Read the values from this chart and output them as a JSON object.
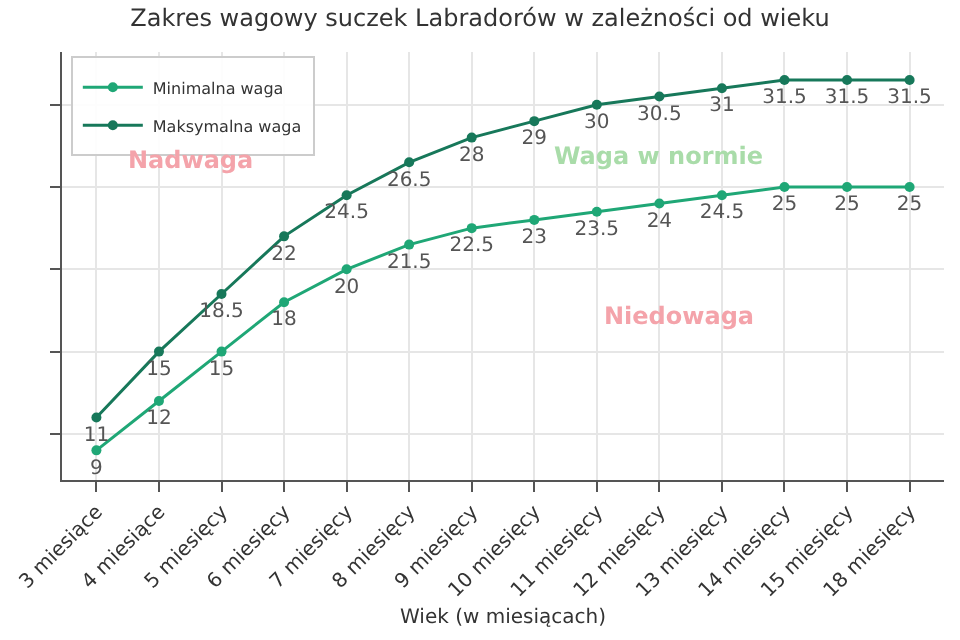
{
  "chart_data": {
    "type": "line",
    "title": "Zakres wagowy suczek Labradorów w zależności od wieku",
    "xlabel": "Wiek (w miesiącach)",
    "categories": [
      "3 miesiące",
      "4 miesiące",
      "5 miesięcy",
      "6 miesięcy",
      "7 miesięcy",
      "8 miesięcy",
      "9 miesięcy",
      "10 miesięcy",
      "11 miesięcy",
      "12 miesięcy",
      "13 miesięcy",
      "14 miesięcy",
      "15 miesięcy",
      "18 miesięcy"
    ],
    "series": [
      {
        "name": "Minimalna waga",
        "color": "#1fa776",
        "values": [
          9,
          12,
          15,
          18,
          20,
          21.5,
          22.5,
          23,
          23.5,
          24,
          24.5,
          25,
          25,
          25
        ]
      },
      {
        "name": "Maksymalna waga",
        "color": "#17785a",
        "values": [
          11,
          15,
          18.5,
          22,
          24.5,
          26.5,
          28,
          29,
          30,
          30.5,
          31,
          31.5,
          31.5,
          31.5
        ]
      }
    ],
    "annotations": [
      "Nadwaga",
      "Waga w normie",
      "Niedowaga"
    ],
    "ylim": [
      7.2,
      33.2
    ],
    "yticks": [
      {
        "value": 10,
        "label": null
      },
      {
        "value": 15,
        "label": null
      },
      {
        "value": 20,
        "label": null
      },
      {
        "value": 25,
        "label": null
      },
      {
        "value": 30,
        "label": null
      }
    ],
    "tick_labels": "x",
    "grid": true,
    "legend": "top left",
    "marker": "circle",
    "line_style": "solid",
    "data_labels": true
  }
}
